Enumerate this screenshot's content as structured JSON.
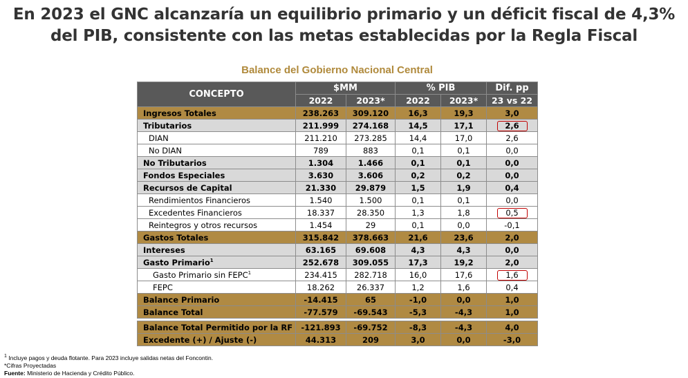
{
  "title": "En 2023 el GNC alcanzaría un equilibrio primario y un déficit fiscal de 4,3% del PIB, consistente con las metas establecidas por la Regla Fiscal",
  "table_title": "Balance del Gobierno Nacional Central",
  "header": {
    "concepto": "CONCEPTO",
    "mm": "$MM",
    "pib": "% PIB",
    "dif": "Dif. pp",
    "y2022": "2022",
    "y2023": "2023*",
    "vs": "23 vs 22"
  },
  "rows": [
    {
      "label": "Ingresos Totales",
      "m22": "238.263",
      "m23": "309.120",
      "p22": "16,3",
      "p23": "19,3",
      "dif": "3,0"
    },
    {
      "label": "Tributarios",
      "m22": "211.999",
      "m23": "274.168",
      "p22": "14,5",
      "p23": "17,1",
      "dif": "2,6"
    },
    {
      "label": "DIAN",
      "m22": "211.210",
      "m23": "273.285",
      "p22": "14,4",
      "p23": "17,0",
      "dif": "2,6"
    },
    {
      "label": "No DIAN",
      "m22": "789",
      "m23": "883",
      "p22": "0,1",
      "p23": "0,1",
      "dif": "0,0"
    },
    {
      "label": "No Tributarios",
      "m22": "1.304",
      "m23": "1.466",
      "p22": "0,1",
      "p23": "0,1",
      "dif": "0,0"
    },
    {
      "label": "Fondos Especiales",
      "m22": "3.630",
      "m23": "3.606",
      "p22": "0,2",
      "p23": "0,2",
      "dif": "0,0"
    },
    {
      "label": "Recursos de Capital",
      "m22": "21.330",
      "m23": "29.879",
      "p22": "1,5",
      "p23": "1,9",
      "dif": "0,4"
    },
    {
      "label": "Rendimientos Financieros",
      "m22": "1.540",
      "m23": "1.500",
      "p22": "0,1",
      "p23": "0,1",
      "dif": "0,0"
    },
    {
      "label": "Excedentes Financieros",
      "m22": "18.337",
      "m23": "28.350",
      "p22": "1,3",
      "p23": "1,8",
      "dif": "0,5"
    },
    {
      "label": "Reintegros y otros recursos",
      "m22": "1.454",
      "m23": "29",
      "p22": "0,1",
      "p23": "0,0",
      "dif": "-0,1"
    },
    {
      "label": "Gastos Totales",
      "m22": "315.842",
      "m23": "378.663",
      "p22": "21,6",
      "p23": "23,6",
      "dif": "2,0"
    },
    {
      "label": "Intereses",
      "m22": "63.165",
      "m23": "69.608",
      "p22": "4,3",
      "p23": "4,3",
      "dif": "0,0"
    },
    {
      "label": "Gasto Primario",
      "m22": "252.678",
      "m23": "309.055",
      "p22": "17,3",
      "p23": "19,2",
      "dif": "2,0"
    },
    {
      "label": "Gasto Primario sin FEPC",
      "m22": "234.415",
      "m23": "282.718",
      "p22": "16,0",
      "p23": "17,6",
      "dif": "1,6"
    },
    {
      "label": "FEPC",
      "m22": "18.262",
      "m23": "26.337",
      "p22": "1,2",
      "p23": "1,6",
      "dif": "0,4"
    },
    {
      "label": "Balance Primario",
      "m22": "-14.415",
      "m23": "65",
      "p22": "-1,0",
      "p23": "0,0",
      "dif": "1,0"
    },
    {
      "label": "Balance Total",
      "m22": "-77.579",
      "m23": "-69.543",
      "p22": "-5,3",
      "p23": "-4,3",
      "dif": "1,0"
    },
    {
      "label": "Balance Total Permitido por la RF",
      "m22": "-121.893",
      "m23": "-69.752",
      "p22": "-8,3",
      "p23": "-4,3",
      "dif": "4,0"
    },
    {
      "label": "Excedente (+) / Ajuste (-)",
      "m22": "44.313",
      "m23": "209",
      "p22": "3,0",
      "p23": "0,0",
      "dif": "-3,0"
    }
  ],
  "footnote_mark": "1",
  "notes": {
    "n1": "Incluye pagos y deuda flotante. Para 2023 incluye salidas netas del Foncontin.",
    "n2": "*Cifras Proyectadas",
    "source_label": "Fuente:",
    "source_text": "Ministerio de Hacienda y Crédito Público."
  },
  "colors": {
    "gold": "#B08A43",
    "grey": "#D9D9D9",
    "header": "#595959",
    "highlight": "#C00000"
  }
}
